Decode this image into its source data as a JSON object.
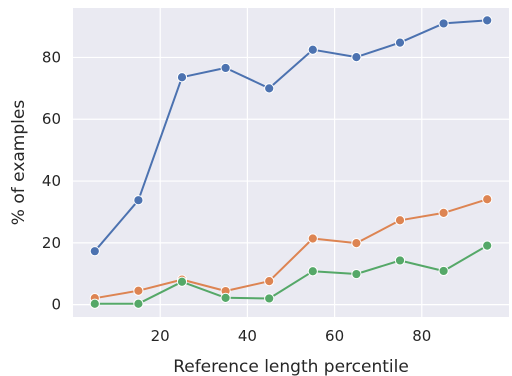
{
  "chart_data": {
    "type": "line",
    "title": "",
    "xlabel": "Reference length percentile",
    "ylabel": "% of examples",
    "xlim": [
      0,
      100
    ],
    "ylim": [
      -4,
      96
    ],
    "xticks": [
      20,
      40,
      60,
      80
    ],
    "yticks": [
      0,
      20,
      40,
      60,
      80
    ],
    "grid": true,
    "legend": "none",
    "background": "#eaeaf2",
    "x": [
      5,
      15,
      25,
      35,
      45,
      55,
      65,
      75,
      85,
      95
    ],
    "series": [
      {
        "color": "#4c72b0",
        "values": [
          17.3,
          33.8,
          73.6,
          76.6,
          70.0,
          82.5,
          80.1,
          84.8,
          91.0,
          92.0
        ]
      },
      {
        "color": "#dd8452",
        "values": [
          2.1,
          4.5,
          8.1,
          4.4,
          7.6,
          21.4,
          19.9,
          27.3,
          29.7,
          34.1
        ]
      },
      {
        "color": "#55a868",
        "values": [
          0.3,
          0.3,
          7.4,
          2.2,
          2.0,
          10.8,
          9.9,
          14.3,
          10.9,
          19.1
        ]
      }
    ]
  }
}
